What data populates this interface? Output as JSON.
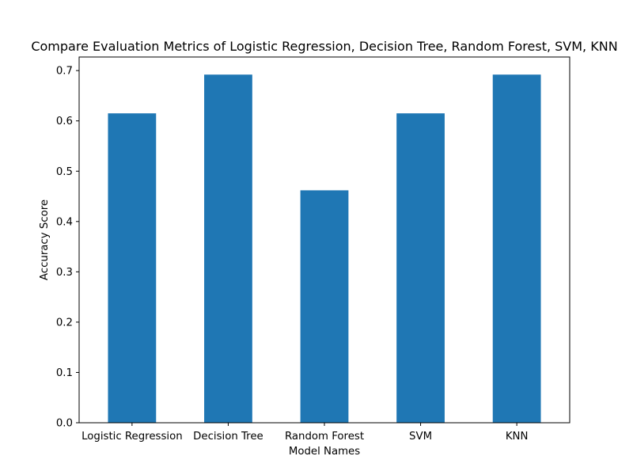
{
  "chart_data": {
    "type": "bar",
    "title": "Compare Evaluation Metrics of Logistic Regression, Decision Tree, Random Forest, SVM, KNN",
    "xlabel": "Model Names",
    "ylabel": "Accuracy Score",
    "categories": [
      "Logistic Regression",
      "Decision Tree",
      "Random Forest",
      "SVM",
      "KNN"
    ],
    "values": [
      0.615,
      0.692,
      0.462,
      0.615,
      0.692
    ],
    "ylim": [
      0,
      0.727
    ],
    "yticks": [
      "0.0",
      "0.1",
      "0.2",
      "0.3",
      "0.4",
      "0.5",
      "0.6",
      "0.7"
    ],
    "bar_color": "#1f77b4",
    "grid": false,
    "legend": "none"
  }
}
